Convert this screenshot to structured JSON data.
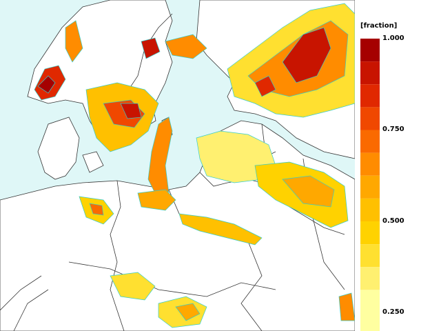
{
  "map": {
    "sea_color": "#dff7f7",
    "land_color": "#ffffff",
    "border_color": "#333333",
    "contour_color": "#33cccc"
  },
  "legend": {
    "title": "[fraction]",
    "ticks": [
      "1.000",
      "0.750",
      "0.500",
      "0.250"
    ],
    "tick_values": [
      1.0,
      0.75,
      0.5,
      0.25
    ],
    "bands": [
      {
        "from": 0.9375,
        "to": 1.0,
        "color": "#a50000"
      },
      {
        "from": 0.875,
        "to": 0.9375,
        "color": "#c81400"
      },
      {
        "from": 0.8125,
        "to": 0.875,
        "color": "#e02800"
      },
      {
        "from": 0.75,
        "to": 0.8125,
        "color": "#f04800"
      },
      {
        "from": 0.6875,
        "to": 0.75,
        "color": "#fa6a00"
      },
      {
        "from": 0.625,
        "to": 0.6875,
        "color": "#ff8c00"
      },
      {
        "from": 0.5625,
        "to": 0.625,
        "color": "#ffa800"
      },
      {
        "from": 0.5,
        "to": 0.5625,
        "color": "#ffc000"
      },
      {
        "from": 0.4375,
        "to": 0.5,
        "color": "#ffd200"
      },
      {
        "from": 0.375,
        "to": 0.4375,
        "color": "#ffe030"
      },
      {
        "from": 0.3125,
        "to": 0.375,
        "color": "#fff070"
      },
      {
        "from": 0.25,
        "to": 0.3125,
        "color": "#ffffa0"
      }
    ]
  }
}
